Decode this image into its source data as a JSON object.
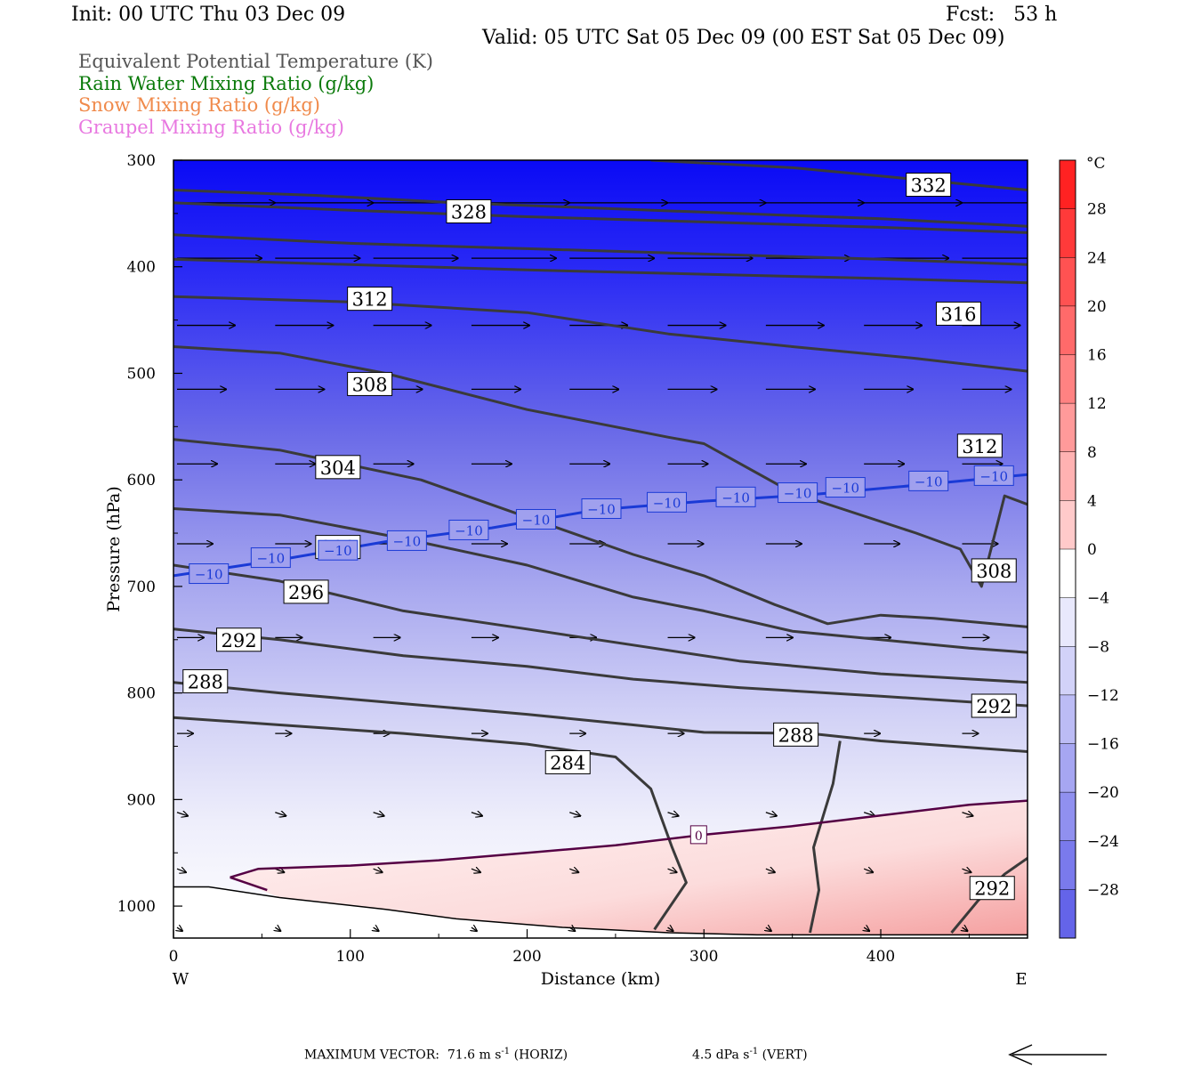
{
  "header": {
    "init": "Init: 00 UTC Thu 03 Dec 09",
    "fcst": "Fcst:   53 h",
    "valid": "Valid: 05 UTC Sat 05 Dec 09 (00 EST Sat 05 Dec 09)"
  },
  "legend": [
    {
      "label": "Equivalent Potential Temperature (K)",
      "color": "#555555"
    },
    {
      "label": "Rain Water Mixing Ratio (g/kg)",
      "color": "#0a7a0a"
    },
    {
      "label": "Snow Mixing Ratio (g/kg)",
      "color": "#f08a4b"
    },
    {
      "label": "Graupel Mixing Ratio (g/kg)",
      "color": "#e878e0"
    }
  ],
  "chart_data": {
    "type": "cross-section",
    "xlabel": "Distance (km)",
    "ylabel": "Pressure (hPa)",
    "xlim": [
      0,
      483
    ],
    "ylim": [
      1030,
      300
    ],
    "x_ticks": [
      0,
      100,
      200,
      300,
      400
    ],
    "y_ticks": [
      300,
      400,
      500,
      600,
      700,
      800,
      900,
      1000
    ],
    "x_left_label": "W",
    "x_right_label": "E",
    "colorbar": {
      "unit": "°C",
      "range": [
        -32,
        32
      ],
      "tick_labels": [
        "28",
        "24",
        "20",
        "16",
        "12",
        "8",
        "4",
        "0",
        "−4",
        "−8",
        "−12",
        "−16",
        "−20",
        "−24",
        "−28"
      ]
    },
    "theta_e_contours": [
      {
        "level": 332,
        "points": [
          [
            270,
            300
          ],
          [
            350,
            307
          ],
          [
            420,
            318
          ],
          [
            483,
            328
          ]
        ]
      },
      {
        "level": 328,
        "points": [
          [
            0,
            328
          ],
          [
            80,
            333
          ],
          [
            160,
            340
          ],
          [
            240,
            345
          ],
          [
            320,
            350
          ],
          [
            400,
            355
          ],
          [
            483,
            362
          ]
        ]
      },
      {
        "level": 324,
        "points": [
          [
            0,
            340
          ],
          [
            100,
            347
          ],
          [
            200,
            353
          ],
          [
            300,
            358
          ],
          [
            400,
            363
          ],
          [
            483,
            368
          ]
        ]
      },
      {
        "level": 320,
        "points": [
          [
            0,
            370
          ],
          [
            100,
            378
          ],
          [
            200,
            383
          ],
          [
            300,
            388
          ],
          [
            400,
            393
          ],
          [
            483,
            398
          ]
        ]
      },
      {
        "level": 320,
        "points": [
          [
            0,
            393
          ],
          [
            100,
            398
          ],
          [
            200,
            403
          ],
          [
            300,
            407
          ],
          [
            400,
            411
          ],
          [
            483,
            415
          ]
        ]
      },
      {
        "level": 316,
        "points": [
          [
            0,
            428
          ],
          [
            100,
            433
          ],
          [
            200,
            443
          ],
          [
            280,
            463
          ],
          [
            350,
            475
          ],
          [
            420,
            486
          ],
          [
            483,
            498
          ]
        ]
      },
      {
        "level": 312,
        "points": [
          [
            0,
            475
          ],
          [
            60,
            481
          ],
          [
            120,
            500
          ],
          [
            200,
            534
          ],
          [
            280,
            560
          ],
          [
            300,
            566
          ],
          [
            350,
            612
          ],
          [
            420,
            650
          ],
          [
            445,
            665
          ],
          [
            457,
            700
          ],
          [
            470,
            615
          ],
          [
            483,
            623
          ]
        ]
      },
      {
        "level": 308,
        "points": [
          [
            0,
            562
          ],
          [
            60,
            572
          ],
          [
            140,
            600
          ],
          [
            200,
            635
          ],
          [
            260,
            670
          ],
          [
            300,
            690
          ],
          [
            340,
            717
          ],
          [
            370,
            735
          ],
          [
            400,
            727
          ],
          [
            430,
            730
          ],
          [
            483,
            738
          ]
        ]
      },
      {
        "level": 304,
        "points": [
          [
            0,
            627
          ],
          [
            60,
            633
          ],
          [
            130,
            655
          ],
          [
            200,
            680
          ],
          [
            260,
            710
          ],
          [
            300,
            723
          ],
          [
            350,
            742
          ],
          [
            400,
            750
          ],
          [
            450,
            758
          ],
          [
            483,
            762
          ]
        ]
      },
      {
        "level": 300,
        "points": [
          [
            0,
            680
          ],
          [
            60,
            695
          ],
          [
            130,
            723
          ],
          [
            200,
            740
          ],
          [
            260,
            755
          ],
          [
            320,
            770
          ],
          [
            400,
            782
          ],
          [
            483,
            790
          ]
        ]
      },
      {
        "level": 296,
        "points": [
          [
            0,
            740
          ],
          [
            60,
            750
          ],
          [
            130,
            765
          ],
          [
            200,
            775
          ],
          [
            260,
            787
          ],
          [
            320,
            795
          ],
          [
            400,
            803
          ],
          [
            483,
            812
          ]
        ]
      },
      {
        "level": 292,
        "points": [
          [
            0,
            790
          ],
          [
            60,
            800
          ],
          [
            130,
            810
          ],
          [
            200,
            820
          ],
          [
            260,
            830
          ],
          [
            300,
            837
          ],
          [
            360,
            838
          ],
          [
            400,
            845
          ],
          [
            483,
            855
          ]
        ]
      },
      {
        "level": 288,
        "points": [
          [
            0,
            823
          ],
          [
            60,
            830
          ],
          [
            130,
            838
          ],
          [
            200,
            848
          ],
          [
            250,
            860
          ],
          [
            270,
            890
          ],
          [
            282,
            945
          ],
          [
            290,
            978
          ],
          [
            272,
            1022
          ]
        ]
      },
      {
        "level": 288,
        "points": [
          [
            360,
            1025
          ],
          [
            365,
            985
          ],
          [
            362,
            945
          ],
          [
            373,
            885
          ],
          [
            377,
            845
          ]
        ]
      },
      {
        "level": 292,
        "points": [
          [
            440,
            1025
          ],
          [
            455,
            995
          ],
          [
            470,
            970
          ],
          [
            483,
            955
          ]
        ]
      }
    ],
    "theta_e_labels": [
      {
        "text": "332",
        "x": 427,
        "p": 323
      },
      {
        "text": "328",
        "x": 167,
        "p": 348
      },
      {
        "text": "312",
        "x": 111,
        "p": 430
      },
      {
        "text": "316",
        "x": 444,
        "p": 444
      },
      {
        "text": "308",
        "x": 111,
        "p": 510
      },
      {
        "text": "312",
        "x": 456,
        "p": 568
      },
      {
        "text": "304",
        "x": 93,
        "p": 588
      },
      {
        "text": "300",
        "x": 93,
        "p": 663
      },
      {
        "text": "308",
        "x": 464,
        "p": 685
      },
      {
        "text": "296",
        "x": 75,
        "p": 705
      },
      {
        "text": "292",
        "x": 37,
        "p": 750
      },
      {
        "text": "288",
        "x": 18,
        "p": 789
      },
      {
        "text": "292",
        "x": 464,
        "p": 812
      },
      {
        "text": "288",
        "x": 352,
        "p": 839
      },
      {
        "text": "284",
        "x": 223,
        "p": 865
      },
      {
        "text": "292",
        "x": 463,
        "p": 983
      }
    ],
    "isotherm_minus10": {
      "level": -10,
      "color": "#1a3ad6",
      "points": [
        [
          0,
          690
        ],
        [
          60,
          675
        ],
        [
          120,
          658
        ],
        [
          180,
          645
        ],
        [
          240,
          628
        ],
        [
          300,
          620
        ],
        [
          360,
          614
        ],
        [
          420,
          605
        ],
        [
          483,
          595
        ]
      ],
      "labels": [
        [
          20,
          688
        ],
        [
          55,
          673
        ],
        [
          93,
          666
        ],
        [
          132,
          657
        ],
        [
          167,
          647
        ],
        [
          205,
          637
        ],
        [
          242,
          627
        ],
        [
          279,
          621
        ],
        [
          318,
          616
        ],
        [
          353,
          612
        ],
        [
          380,
          607
        ],
        [
          427,
          601
        ],
        [
          464,
          596
        ]
      ]
    },
    "isotherm_zero": {
      "level": 0,
      "color": "#550044",
      "points": [
        [
          32,
          973
        ],
        [
          48,
          965
        ],
        [
          100,
          962
        ],
        [
          150,
          957
        ],
        [
          200,
          950
        ],
        [
          250,
          943
        ],
        [
          300,
          933
        ],
        [
          350,
          925
        ],
        [
          400,
          915
        ],
        [
          450,
          905
        ],
        [
          483,
          901
        ]
      ],
      "tail": [
        [
          32,
          973
        ],
        [
          53,
          985
        ]
      ],
      "label_x": 297,
      "label_p": 933
    },
    "ground_line": [
      [
        0,
        982
      ],
      [
        20,
        982
      ],
      [
        60,
        992
      ],
      [
        120,
        1003
      ],
      [
        160,
        1012
      ],
      [
        220,
        1020
      ],
      [
        280,
        1025
      ],
      [
        330,
        1027
      ],
      [
        400,
        1027
      ],
      [
        483,
        1027
      ]
    ],
    "wind_vectors": {
      "max_horizontal": "71.6",
      "max_vertical": "4.5"
    }
  },
  "footer": {
    "max_vector_label": "MAXIMUM VECTOR:  71.6 m s",
    "horiz_suffix": " (HORIZ)",
    "vert_label": "4.5 dPa s",
    "vert_suffix": " (VERT)",
    "exponent": "-1"
  }
}
